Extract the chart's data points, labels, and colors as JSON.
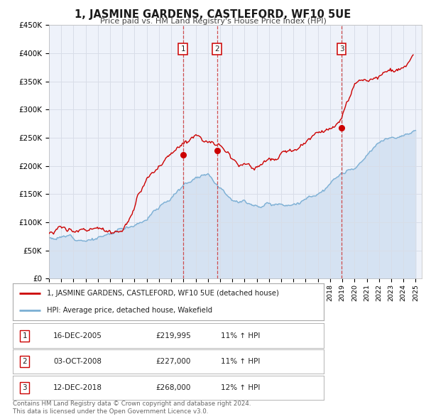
{
  "title": "1, JASMINE GARDENS, CASTLEFORD, WF10 5UE",
  "subtitle": "Price paid vs. HM Land Registry's House Price Index (HPI)",
  "background_color": "#ffffff",
  "plot_bg_color": "#eef2fa",
  "grid_color": "#d8dde8",
  "red_line_color": "#cc0000",
  "blue_line_color": "#7bafd4",
  "blue_fill_color": "#c5d8ee",
  "ylim": [
    0,
    450000
  ],
  "yticks": [
    0,
    50000,
    100000,
    150000,
    200000,
    250000,
    300000,
    350000,
    400000,
    450000
  ],
  "ytick_labels": [
    "£0",
    "£50K",
    "£100K",
    "£150K",
    "£200K",
    "£250K",
    "£300K",
    "£350K",
    "£400K",
    "£450K"
  ],
  "xlim": [
    1995,
    2025.5
  ],
  "transactions": [
    {
      "num": 1,
      "price": 219995,
      "x_year": 2005.96
    },
    {
      "num": 2,
      "price": 227000,
      "x_year": 2008.75
    },
    {
      "num": 3,
      "price": 268000,
      "x_year": 2018.95
    }
  ],
  "legend_line1": "1, JASMINE GARDENS, CASTLEFORD, WF10 5UE (detached house)",
  "legend_line2": "HPI: Average price, detached house, Wakefield",
  "footer_line1": "Contains HM Land Registry data © Crown copyright and database right 2024.",
  "footer_line2": "This data is licensed under the Open Government Licence v3.0.",
  "table_rows": [
    {
      "num": 1,
      "date_str": "16-DEC-2005",
      "price_str": "£219,995",
      "pct_str": "11% ↑ HPI"
    },
    {
      "num": 2,
      "date_str": "03-OCT-2008",
      "price_str": "£227,000",
      "pct_str": "11% ↑ HPI"
    },
    {
      "num": 3,
      "date_str": "12-DEC-2018",
      "price_str": "£268,000",
      "pct_str": "12% ↑ HPI"
    }
  ]
}
